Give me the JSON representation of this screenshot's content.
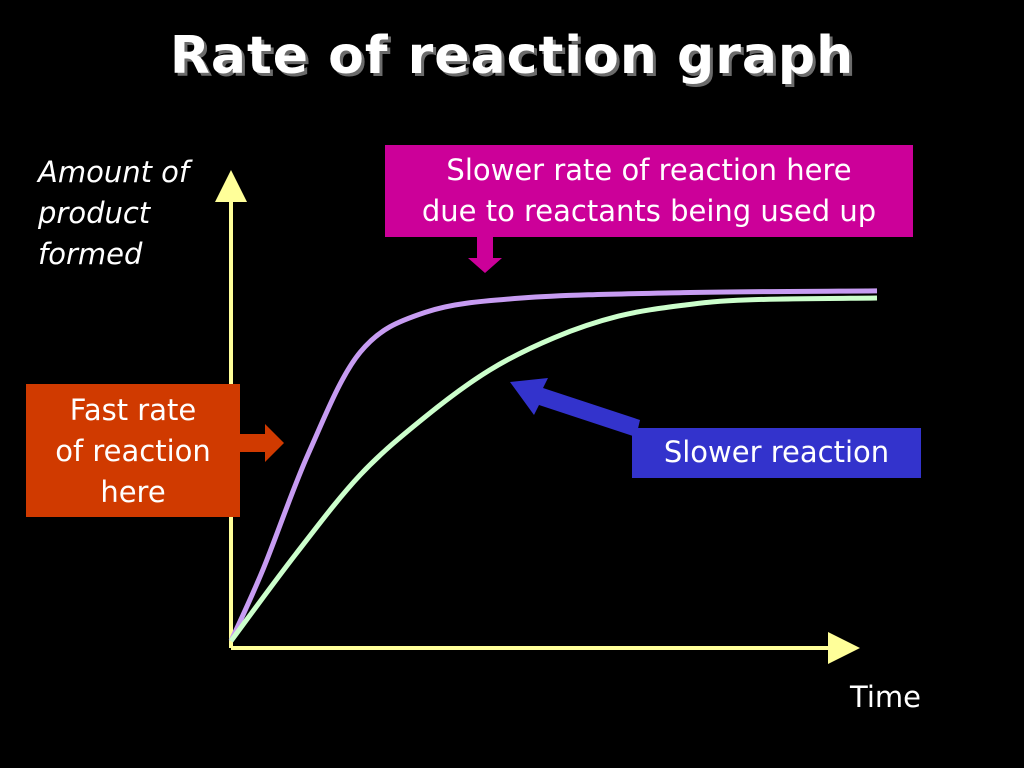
{
  "title": "Rate of reaction graph",
  "chart_data": {
    "type": "line",
    "title": "Rate of reaction graph",
    "ylabel": "Amount of product formed",
    "xlabel": "Time",
    "grid": false,
    "series": [
      {
        "color": "#c79cf2",
        "points": [
          [
            0,
            0
          ],
          [
            5,
            20
          ],
          [
            12,
            52
          ],
          [
            20,
            80
          ],
          [
            30,
            91
          ],
          [
            45,
            95
          ],
          [
            70,
            96.5
          ],
          [
            100,
            97
          ]
        ]
      },
      {
        "color": "#ccffcc",
        "points": [
          [
            0,
            0
          ],
          [
            10,
            24
          ],
          [
            20,
            46
          ],
          [
            30,
            62
          ],
          [
            40,
            75
          ],
          [
            50,
            84
          ],
          [
            60,
            90
          ],
          [
            70,
            93
          ],
          [
            80,
            94.5
          ],
          [
            100,
            95
          ]
        ]
      }
    ],
    "xlim": [
      0,
      100
    ],
    "ylim": [
      0,
      100
    ],
    "annotations": {
      "fast": "Fast rate of reaction here",
      "slower_top": "Slower rate of reaction here due to reactants being used up",
      "slower_reaction": "Slower reaction"
    },
    "colors": {
      "axes": "#ffff99",
      "fast_box": "#d03a00",
      "top_box": "#cc0099",
      "slow_box": "#3333cc",
      "arrow_slow": "#3333cc"
    }
  },
  "labels": {
    "y_line1": "Amount of",
    "y_line2": "product",
    "y_line3": "formed",
    "x": "Time"
  },
  "boxes": {
    "fast_line1": "Fast rate",
    "fast_line2": "of reaction",
    "fast_line3": "here",
    "top_line1": "Slower rate of reaction here",
    "top_line2": "due to reactants being used up",
    "slow": "Slower reaction"
  }
}
